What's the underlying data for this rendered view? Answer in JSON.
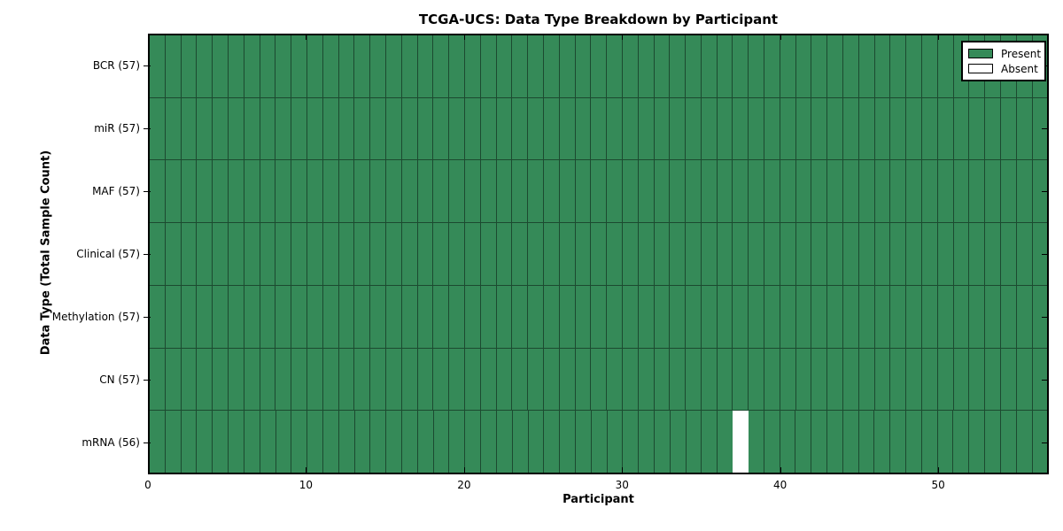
{
  "chart_data": {
    "type": "heatmap",
    "title": "TCGA-UCS: Data Type Breakdown by Participant",
    "xlabel": "Participant",
    "ylabel": "Data Type (Total Sample Count)",
    "n_participants": 57,
    "x_ticks": [
      0,
      10,
      20,
      30,
      40,
      50
    ],
    "rows": [
      {
        "label": "BCR (57)",
        "data_type": "BCR",
        "present_count": 57,
        "absent_participants": []
      },
      {
        "label": "miR (57)",
        "data_type": "miR",
        "present_count": 57,
        "absent_participants": []
      },
      {
        "label": "MAF (57)",
        "data_type": "MAF",
        "present_count": 57,
        "absent_participants": []
      },
      {
        "label": "Clinical (57)",
        "data_type": "Clinical",
        "present_count": 57,
        "absent_participants": []
      },
      {
        "label": "Methylation (57)",
        "data_type": "Methylation",
        "present_count": 57,
        "absent_participants": []
      },
      {
        "label": "CN (57)",
        "data_type": "CN",
        "present_count": 57,
        "absent_participants": []
      },
      {
        "label": "mRNA (56)",
        "data_type": "mRNA",
        "present_count": 56,
        "absent_participants": [
          37
        ]
      }
    ],
    "legend": [
      {
        "label": "Present",
        "color": "#358a58"
      },
      {
        "label": "Absent",
        "color": "#ffffff"
      }
    ],
    "colors": {
      "present": "#358a58",
      "absent": "#ffffff",
      "grid_line": "#1c4a30",
      "spine": "#000000",
      "background": "#ffffff"
    },
    "legend_position": "upper right",
    "grid": "cell-borders"
  }
}
